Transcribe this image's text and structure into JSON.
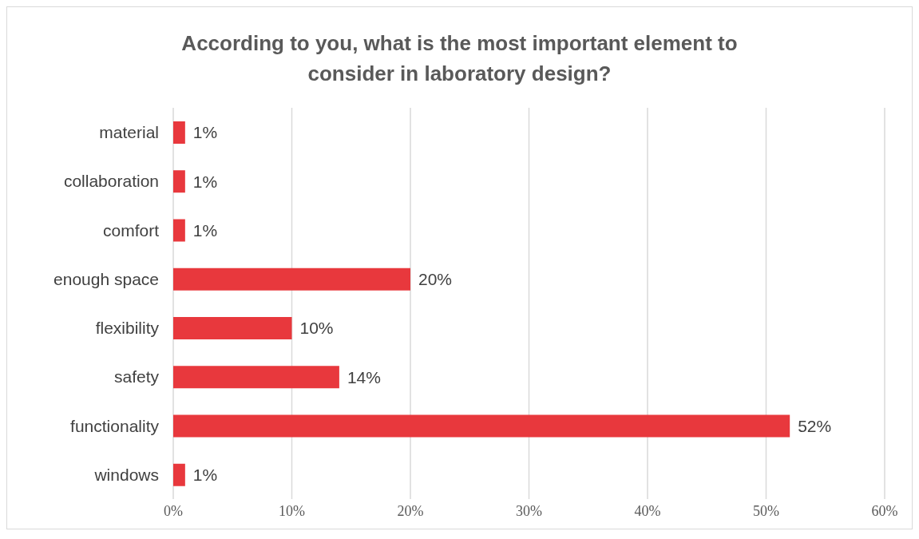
{
  "chart_data": {
    "type": "bar",
    "orientation": "horizontal",
    "title": "According to you, what is the most important element to consider in laboratory design?",
    "categories": [
      "material",
      "collaboration",
      "comfort",
      "enough space",
      "flexibility",
      "safety",
      "functionality",
      "windows"
    ],
    "values": [
      1,
      1,
      1,
      20,
      10,
      14,
      52,
      1
    ],
    "value_labels": [
      "1%",
      "1%",
      "1%",
      "20%",
      "10%",
      "14%",
      "52%",
      "1%"
    ],
    "color": "#e8383d",
    "xlim": [
      0,
      60
    ],
    "xticks": [
      {
        "value": 0,
        "label": "0%"
      },
      {
        "value": 10,
        "label": "10%"
      },
      {
        "value": 20,
        "label": "20%"
      },
      {
        "value": 30,
        "label": "30%"
      },
      {
        "value": 40,
        "label": "40%"
      },
      {
        "value": 50,
        "label": "50%"
      },
      {
        "value": 60,
        "label": "60%"
      }
    ],
    "grid": "x"
  }
}
